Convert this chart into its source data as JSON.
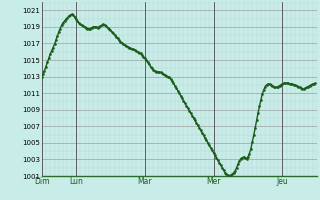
{
  "background_color": "#c8ece8",
  "plot_bg_color": "#c8ece8",
  "line_color": "#1a5c1a",
  "ylim": [
    1001,
    1022
  ],
  "yticks": [
    1001,
    1003,
    1005,
    1007,
    1009,
    1011,
    1013,
    1015,
    1017,
    1019,
    1021
  ],
  "day_labels": [
    "Dim",
    "Lun",
    "Mar",
    "Mer",
    "Jeu"
  ],
  "day_positions_hours": [
    0,
    24,
    72,
    120,
    168
  ],
  "total_hours": 192,
  "pressure_data": [
    1013.0,
    1013.3,
    1013.7,
    1014.2,
    1014.7,
    1015.2,
    1015.7,
    1016.1,
    1016.5,
    1016.9,
    1017.4,
    1017.9,
    1018.4,
    1018.8,
    1019.2,
    1019.5,
    1019.7,
    1019.9,
    1020.1,
    1020.3,
    1020.4,
    1020.5,
    1020.4,
    1020.2,
    1019.9,
    1019.7,
    1019.5,
    1019.3,
    1019.2,
    1019.1,
    1019.0,
    1018.9,
    1018.8,
    1018.8,
    1018.8,
    1018.9,
    1019.0,
    1019.0,
    1019.0,
    1018.9,
    1019.0,
    1019.1,
    1019.2,
    1019.3,
    1019.2,
    1019.1,
    1018.9,
    1018.8,
    1018.6,
    1018.4,
    1018.2,
    1018.0,
    1017.8,
    1017.6,
    1017.4,
    1017.2,
    1017.1,
    1016.9,
    1016.8,
    1016.7,
    1016.6,
    1016.5,
    1016.4,
    1016.3,
    1016.3,
    1016.2,
    1016.1,
    1016.0,
    1015.9,
    1015.8,
    1015.6,
    1015.4,
    1015.2,
    1015.0,
    1014.7,
    1014.5,
    1014.2,
    1014.0,
    1013.8,
    1013.7,
    1013.6,
    1013.6,
    1013.5,
    1013.5,
    1013.4,
    1013.3,
    1013.2,
    1013.1,
    1013.0,
    1012.9,
    1012.7,
    1012.5,
    1012.2,
    1011.9,
    1011.6,
    1011.3,
    1011.0,
    1010.7,
    1010.4,
    1010.1,
    1009.8,
    1009.5,
    1009.2,
    1008.9,
    1008.6,
    1008.3,
    1008.0,
    1007.7,
    1007.4,
    1007.1,
    1006.8,
    1006.5,
    1006.2,
    1005.9,
    1005.6,
    1005.3,
    1005.0,
    1004.7,
    1004.4,
    1004.1,
    1003.8,
    1003.5,
    1003.2,
    1002.9,
    1002.6,
    1002.3,
    1002.0,
    1001.7,
    1001.4,
    1001.2,
    1001.1,
    1001.0,
    1001.1,
    1001.2,
    1001.4,
    1001.6,
    1002.0,
    1002.4,
    1002.8,
    1003.1,
    1003.2,
    1003.3,
    1003.2,
    1003.1,
    1003.3,
    1003.7,
    1004.3,
    1005.1,
    1005.9,
    1006.8,
    1007.7,
    1008.6,
    1009.4,
    1010.2,
    1010.9,
    1011.4,
    1011.8,
    1012.0,
    1012.1,
    1012.1,
    1012.0,
    1011.9,
    1011.8,
    1011.7,
    1011.7,
    1011.8,
    1011.9,
    1012.0,
    1012.1,
    1012.2,
    1012.2,
    1012.2,
    1012.2,
    1012.1,
    1012.1,
    1012.1,
    1012.0,
    1012.0,
    1011.9,
    1011.8,
    1011.7,
    1011.6,
    1011.5,
    1011.5,
    1011.6,
    1011.7,
    1011.8,
    1011.9,
    1012.0,
    1012.1,
    1012.1,
    1012.2
  ]
}
